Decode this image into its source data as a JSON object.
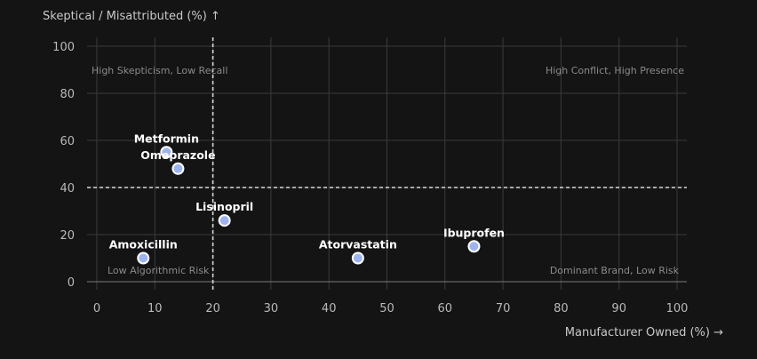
{
  "chart_data": {
    "type": "scatter",
    "xlabel": "Manufacturer Owned (%) →",
    "ylabel": "Skeptical / Misattributed (%) ↑",
    "xlim": [
      0,
      100
    ],
    "ylim": [
      0,
      100
    ],
    "x_ticks": [
      0,
      10,
      20,
      30,
      40,
      50,
      60,
      70,
      80,
      90,
      100
    ],
    "y_ticks": [
      0,
      20,
      40,
      60,
      80,
      100
    ],
    "grid": true,
    "reference_lines": {
      "x": 20,
      "y": 40
    },
    "point_color": "#9db4f0",
    "quadrant_labels": {
      "top_left": "High Skepticism, Low Recall",
      "top_right": "High Conflict, High Presence",
      "bottom_left": "Low Algorithmic Risk",
      "bottom_right": "Dominant Brand, Low Risk"
    },
    "points": [
      {
        "label": "Metformin",
        "x": 12,
        "y": 55
      },
      {
        "label": "Omeprazole",
        "x": 14,
        "y": 48
      },
      {
        "label": "Lisinopril",
        "x": 22,
        "y": 26
      },
      {
        "label": "Amoxicillin",
        "x": 8,
        "y": 10
      },
      {
        "label": "Atorvastatin",
        "x": 45,
        "y": 10
      },
      {
        "label": "Ibuprofen",
        "x": 65,
        "y": 15
      }
    ]
  }
}
